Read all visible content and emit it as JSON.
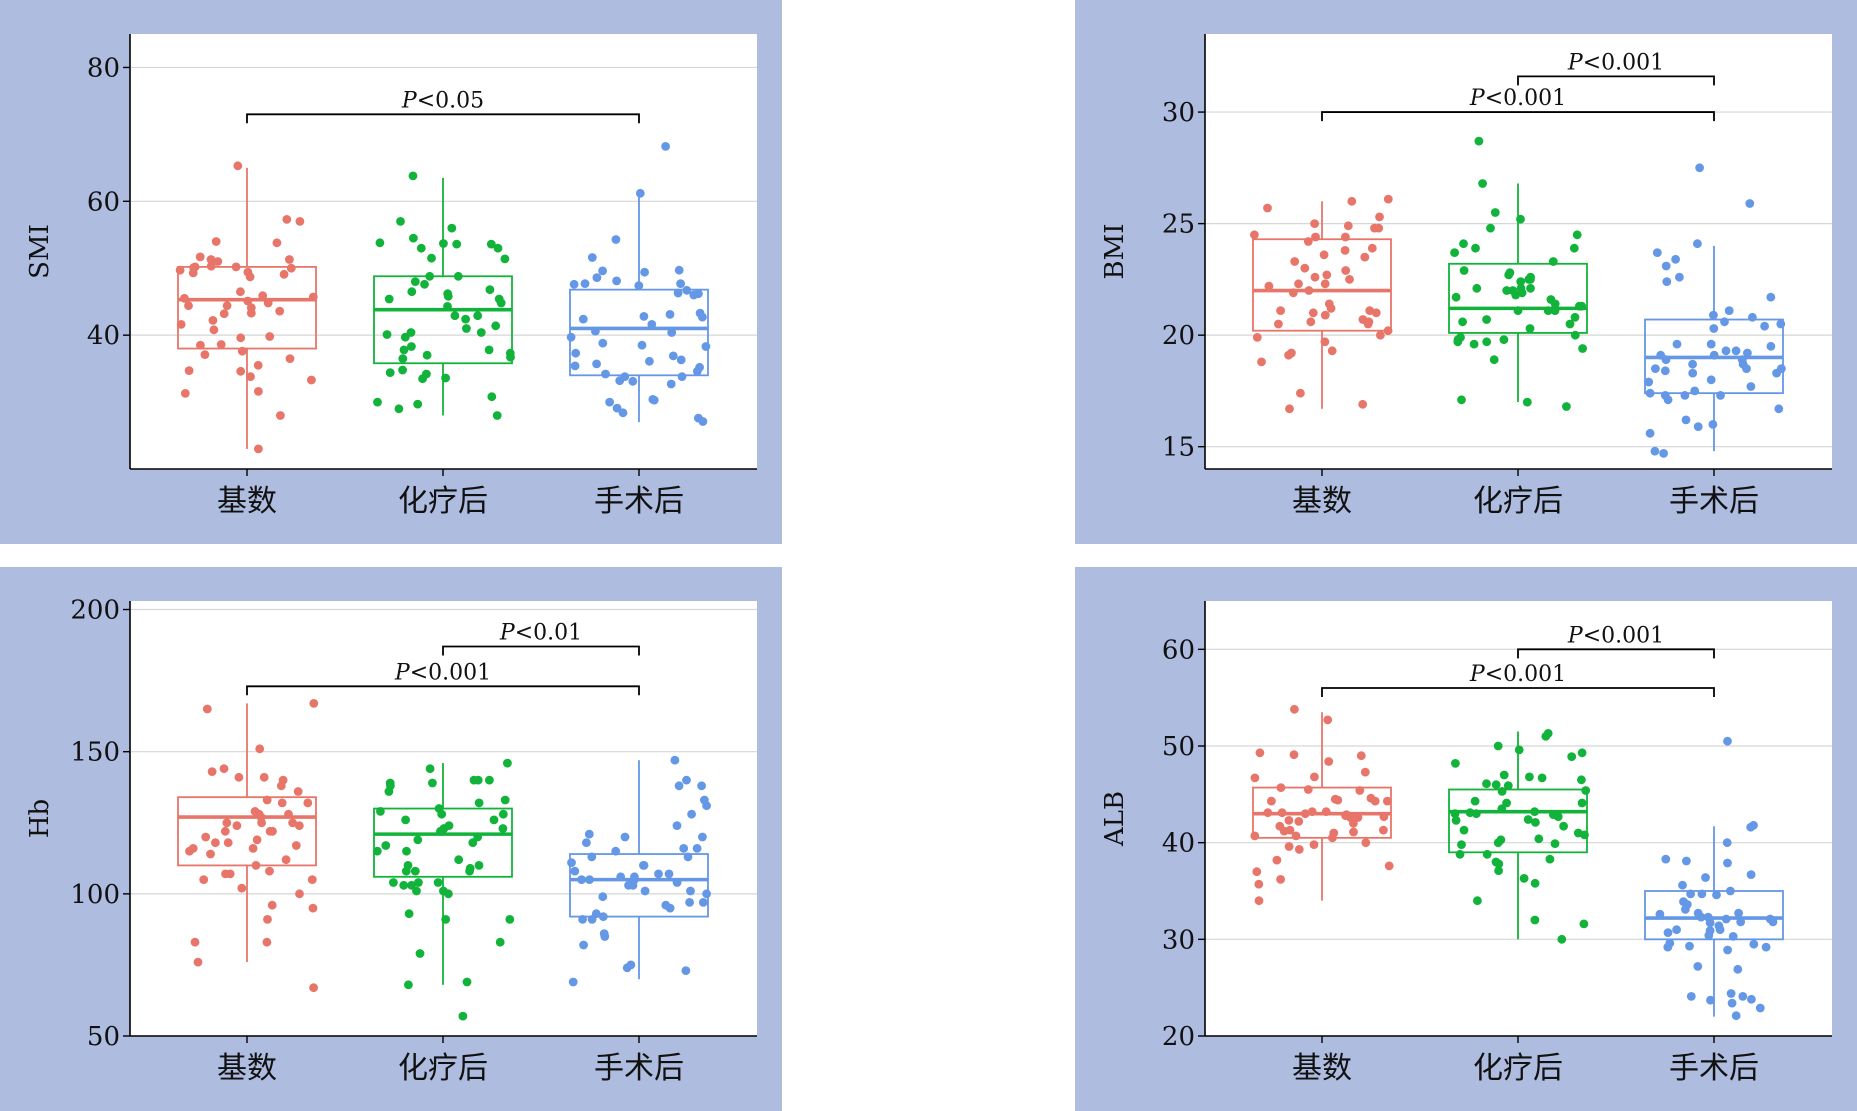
{
  "chart_data": [
    {
      "type": "box",
      "ylabel": "SMI",
      "categories": [
        "基数",
        "化疗后",
        "手术后"
      ],
      "yticks": [
        40,
        60,
        80
      ],
      "ylim": [
        20,
        85
      ],
      "grid": true,
      "colors": [
        "#e8756a",
        "#12b33a",
        "#6497e6"
      ],
      "boxes": [
        {
          "q1": 38,
          "median": 45.3,
          "q3": 50.2,
          "whisker_low": 23,
          "whisker_high": 65
        },
        {
          "q1": 35.8,
          "median": 43.8,
          "q3": 48.8,
          "whisker_low": 28,
          "whisker_high": 63.5
        },
        {
          "q1": 34,
          "median": 41,
          "q3": 46.8,
          "whisker_low": 27,
          "whisker_high": 61
        }
      ],
      "points": [
        [
          43.6,
          34.7,
          50.2,
          50.0,
          51.7,
          36.5,
          50.1,
          33.3,
          51.0,
          49.1,
          49.7,
          40.8,
          44.8,
          45.1,
          49.3,
          44.4,
          45.9,
          34.6,
          37.6,
          50.2,
          57.3,
          57.0,
          43.2,
          49.4,
          23.0,
          54.0,
          31.6,
          48.7,
          39.6,
          38.6,
          45.7,
          28.0,
          35.5,
          46.5,
          65.3,
          51.3,
          31.3,
          38.5,
          43.3,
          53.8,
          37.1,
          33.8,
          44.4,
          44.1,
          50.3,
          39.8,
          41.6,
          51.3,
          45.5,
          42.2
        ],
        [
          56.0,
          47.6,
          48.0,
          45.8,
          34.4,
          53.8,
          53.0,
          34.8,
          51.5,
          36.7,
          37.8,
          44.3,
          51.4,
          28.0,
          38.3,
          46.2,
          37.8,
          29.7,
          53.6,
          63.8,
          40.4,
          34.2,
          42.9,
          44.8,
          33.6,
          48.8,
          33.5,
          46.8,
          53.6,
          40.1,
          41.0,
          36.5,
          46.5,
          42.4,
          30.0,
          53.7,
          45.4,
          42.9,
          39.7,
          37.3,
          48.8,
          41.4,
          29.0,
          53.0,
          54.5,
          57.0,
          37.0,
          30.8,
          45.4,
          40.4
        ],
        [
          33.1,
          48.1,
          46.0,
          37.3,
          36.3,
          47.6,
          49.4,
          49.6,
          61.2,
          33.8,
          43.1,
          38.3,
          47.4,
          32.7,
          51.6,
          30.3,
          27.6,
          30.0,
          40.4,
          35.4,
          47.7,
          33.8,
          42.7,
          42.4,
          34.2,
          38.8,
          36.9,
          38.5,
          46.2,
          40.6,
          49.7,
          27.1,
          35.7,
          41.6,
          46.7,
          43.3,
          34.6,
          30.4,
          48.6,
          42.8,
          68.2,
          33.2,
          35.2,
          29.1,
          46.3,
          47.7,
          54.3,
          39.7,
          28.4,
          36.1
        ]
      ],
      "significance": [
        {
          "from": 0,
          "to": 2,
          "label": "P<0.05",
          "level": 73
        }
      ]
    },
    {
      "type": "box",
      "ylabel": "BMI",
      "categories": [
        "基数",
        "化疗后",
        "手术后"
      ],
      "yticks": [
        15,
        20,
        25,
        30
      ],
      "ylim": [
        14,
        33.5
      ],
      "grid": true,
      "colors": [
        "#e8756a",
        "#12b33a",
        "#6497e6"
      ],
      "boxes": [
        {
          "q1": 20.2,
          "median": 22,
          "q3": 24.3,
          "whisker_low": 16.7,
          "whisker_high": 26
        },
        {
          "q1": 20.1,
          "median": 21.2,
          "q3": 23.2,
          "whisker_low": 17,
          "whisker_high": 26.8
        },
        {
          "q1": 17.4,
          "median": 19,
          "q3": 20.7,
          "whisker_low": 14.8,
          "whisker_high": 24
        }
      ],
      "points": [
        [
          22.3,
          19.3,
          20.6,
          24.5,
          24.4,
          23.8,
          20.5,
          21.4,
          24.2,
          26.0,
          20.2,
          22.0,
          21.0,
          20.6,
          19.9,
          17.4,
          20.5,
          22.6,
          23.9,
          19.1,
          21.2,
          21.1,
          22.9,
          16.7,
          22.3,
          25.7,
          21.1,
          23.3,
          22.5,
          19.7,
          22.2,
          24.8,
          24.4,
          23.5,
          21.0,
          20.9,
          19.2,
          25.3,
          18.8,
          24.9,
          20.7,
          23.0,
          24.8,
          25.0,
          23.6,
          22.7,
          26.1,
          21.9,
          16.9,
          20.0
        ],
        [
          22.1,
          17.0,
          19.8,
          21.1,
          19.4,
          22.0,
          24.5,
          19.9,
          25.5,
          23.7,
          22.1,
          19.6,
          24.1,
          19.7,
          25.2,
          23.9,
          22.5,
          20.0,
          20.6,
          20.5,
          21.1,
          22.7,
          22.8,
          22.9,
          21.6,
          21.1,
          21.8,
          20.3,
          19.7,
          19.8,
          21.3,
          21.9,
          22.0,
          21.4,
          16.8,
          17.1,
          18.9,
          22.1,
          24.8,
          22.4,
          22.6,
          23.3,
          20.8,
          28.7,
          26.8,
          21.7,
          20.7,
          23.9,
          22.5,
          21.3
        ],
        [
          17.9,
          24.1,
          17.3,
          20.6,
          20.4,
          18.5,
          18.9,
          21.1,
          17.7,
          18.7,
          19.1,
          17.3,
          17.1,
          16.0,
          23.1,
          18.3,
          19.5,
          18.9,
          20.3,
          14.7,
          17.5,
          19.1,
          17.4,
          15.6,
          19.3,
          22.6,
          23.7,
          18.0,
          18.5,
          15.9,
          23.4,
          19.6,
          25.9,
          17.3,
          18.5,
          19.3,
          20.5,
          27.5,
          18.3,
          18.4,
          16.7,
          19.2,
          19.6,
          14.8,
          21.7,
          20.8,
          18.7,
          16.2,
          22.4,
          20.9
        ]
      ],
      "significance": [
        {
          "from": 0,
          "to": 2,
          "label": "P<0.001",
          "level": 30
        },
        {
          "from": 1,
          "to": 2,
          "label": "P<0.001",
          "level": 31.6
        }
      ]
    },
    {
      "type": "box",
      "ylabel": "Hb",
      "categories": [
        "基数",
        "化疗后",
        "手术后"
      ],
      "yticks": [
        50,
        100,
        150,
        200
      ],
      "ylim": [
        50,
        203
      ],
      "grid": true,
      "colors": [
        "#e8756a",
        "#12b33a",
        "#6497e6"
      ],
      "boxes": [
        {
          "q1": 110,
          "median": 127,
          "q3": 134,
          "whisker_low": 76,
          "whisker_high": 167
        },
        {
          "q1": 106,
          "median": 121,
          "q3": 130,
          "whisker_low": 68,
          "whisker_high": 146
        },
        {
          "q1": 92,
          "median": 105,
          "q3": 114,
          "whisker_low": 70,
          "whisker_high": 147
        }
      ],
      "points": [
        [
          122,
          108,
          165,
          125,
          96,
          125,
          110,
          91,
          107,
          128,
          136,
          127,
          105,
          122,
          132,
          114,
          67,
          140,
          95,
          83,
          76,
          107,
          105,
          100,
          144,
          151,
          125,
          133,
          115,
          143,
          141,
          120,
          116,
          129,
          112,
          116,
          118,
          124,
          83,
          132,
          122,
          128,
          124,
          118,
          141,
          167,
          119,
          117,
          102,
          138
        ],
        [
          139,
          133,
          128,
          110,
          100,
          104,
          108,
          123,
          79,
          132,
          130,
          103,
          103,
          144,
          140,
          139,
          101,
          138,
          112,
          93,
          126,
          128,
          129,
          123,
          124,
          136,
          122,
          108,
          68,
          108,
          146,
          118,
          119,
          120,
          115,
          69,
          83,
          57,
          109,
          117,
          104,
          104,
          91,
          110,
          126,
          140,
          91,
          140,
          115,
          101
        ],
        [
          92,
          103,
          75,
          105,
          106,
          128,
          116,
          131,
          105,
          95,
          138,
          105,
          74,
          93,
          107,
          73,
          110,
          103,
          85,
          121,
          104,
          108,
          124,
          116,
          101,
          120,
          97,
          96,
          115,
          138,
          111,
          82,
          147,
          91,
          140,
          101,
          113,
          91,
          133,
          118,
          69,
          86,
          100,
          120,
          97,
          113,
          107,
          110,
          99,
          106
        ]
      ],
      "significance": [
        {
          "from": 0,
          "to": 2,
          "label": "P<0.001",
          "level": 173
        },
        {
          "from": 1,
          "to": 2,
          "label": "P<0.01",
          "level": 187
        }
      ]
    },
    {
      "type": "box",
      "ylabel": "ALB",
      "categories": [
        "基数",
        "化疗后",
        "手术后"
      ],
      "yticks": [
        20,
        30,
        40,
        50,
        60
      ],
      "ylim": [
        20,
        65
      ],
      "grid": true,
      "colors": [
        "#e8756a",
        "#12b33a",
        "#6497e6"
      ],
      "boxes": [
        {
          "q1": 40.5,
          "median": 43,
          "q3": 45.7,
          "whisker_low": 34,
          "whisker_high": 53.5
        },
        {
          "q1": 39,
          "median": 43.2,
          "q3": 45.5,
          "whisker_low": 30,
          "whisker_high": 51.5
        },
        {
          "q1": 30,
          "median": 32.2,
          "q3": 35,
          "whisker_low": 22,
          "whisker_high": 41.7
        }
      ],
      "points": [
        [
          49.3,
          43.1,
          49.0,
          42.7,
          45.4,
          43.1,
          38.2,
          44.5,
          42.8,
          40.7,
          46.7,
          44.3,
          40.0,
          41.1,
          43.2,
          39.6,
          42.6,
          52.7,
          41.3,
          42.3,
          36.2,
          40.7,
          41.3,
          47.3,
          37.6,
          45.5,
          41.2,
          43.0,
          35.7,
          42.2,
          44.6,
          39.3,
          46.8,
          48.4,
          53.8,
          43.2,
          39.8,
          37.0,
          49.1,
          45.7,
          44.3,
          42.6,
          40.5,
          41.7,
          42.9,
          44.3,
          41.0,
          42.0,
          44.4,
          34.0
        ],
        [
          42.1,
          39.8,
          43.0,
          45.9,
          43.2,
          34.0,
          38.8,
          41.0,
          38.3,
          37.8,
          42.3,
          48.2,
          32.0,
          43.1,
          47.0,
          42.7,
          41.3,
          49.3,
          30.0,
          31.6,
          46.1,
          46.5,
          40.3,
          51.0,
          49.6,
          45.4,
          38.0,
          51.3,
          44.1,
          39.9,
          35.8,
          48.9,
          43.0,
          40.8,
          37.1,
          42.9,
          44.1,
          40.4,
          36.3,
          46.8,
          38.8,
          42.4,
          40.0,
          46.7,
          44.3,
          41.7,
          46.0,
          45.3,
          50.0,
          43.5
        ],
        [
          31.8,
          34.7,
          29.6,
          41.8,
          36.7,
          35.0,
          24.4,
          26.9,
          30.9,
          50.5,
          31.0,
          32.7,
          22.1,
          28.9,
          32.7,
          30.7,
          32.1,
          33.1,
          40.0,
          23.4,
          31.8,
          30.4,
          35.6,
          30.3,
          34.6,
          29.2,
          37.9,
          31.4,
          27.2,
          24.1,
          38.3,
          29.3,
          38.1,
          32.3,
          32.1,
          29.5,
          36.4,
          31.7,
          23.8,
          22.9,
          32.6,
          23.7,
          34.7,
          41.6,
          29.2,
          33.6,
          32.3,
          24.1,
          31.0,
          33.9
        ]
      ],
      "significance": [
        {
          "from": 0,
          "to": 2,
          "label": "P<0.001",
          "level": 56
        },
        {
          "from": 1,
          "to": 2,
          "label": "P<0.001",
          "level": 60
        }
      ]
    }
  ]
}
